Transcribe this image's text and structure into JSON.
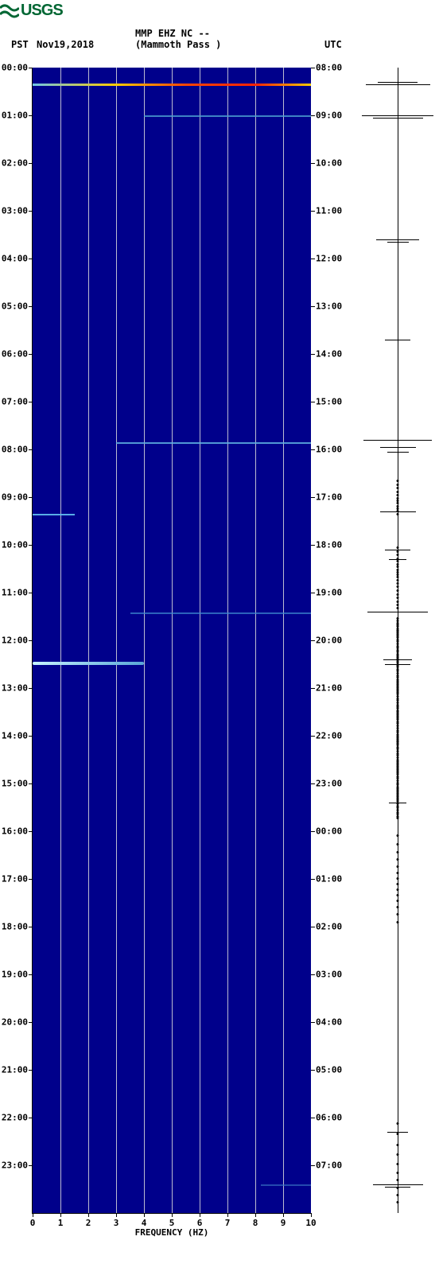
{
  "logo_text": "USGS",
  "header": {
    "station_line1": "MMP EHZ NC --",
    "station_line2": "(Mammoth Pass )",
    "left_tz": "PST",
    "date": "Nov19,2018",
    "right_tz": "UTC"
  },
  "spectrogram": {
    "type": "spectrogram",
    "background_color": "#00008b",
    "grid_color": "#dcdcdc",
    "x_axis": {
      "title": "FREQUENCY (HZ)",
      "min": 0,
      "max": 10,
      "tick_step": 1,
      "labels": [
        "0",
        "1",
        "2",
        "3",
        "4",
        "5",
        "6",
        "7",
        "8",
        "9",
        "10"
      ]
    },
    "left_time_labels": [
      "00:00",
      "01:00",
      "02:00",
      "03:00",
      "04:00",
      "05:00",
      "06:00",
      "07:00",
      "08:00",
      "09:00",
      "10:00",
      "11:00",
      "12:00",
      "13:00",
      "14:00",
      "15:00",
      "16:00",
      "17:00",
      "18:00",
      "19:00",
      "20:00",
      "21:00",
      "22:00",
      "23:00"
    ],
    "right_time_labels": [
      "08:00",
      "09:00",
      "10:00",
      "11:00",
      "12:00",
      "13:00",
      "14:00",
      "15:00",
      "16:00",
      "17:00",
      "18:00",
      "19:00",
      "20:00",
      "21:00",
      "22:00",
      "23:00",
      "00:00",
      "01:00",
      "02:00",
      "03:00",
      "04:00",
      "05:00",
      "06:00",
      "07:00"
    ],
    "hours": 24,
    "features": [
      {
        "hour": 0.33,
        "css": "height:3px;background:linear-gradient(90deg,#6ec3e6 0%,#ffcc00 30%,#ff4500 55%,#ff2200 80%,#ffcc00 100%);"
      },
      {
        "hour": 1.0,
        "css": "height:2px;left:40%;right:0;background:#4da3d1;opacity:0.8;"
      },
      {
        "hour": 7.85,
        "css": "height:2px;left:30%;right:0;background:#5fb1e0;opacity:0.85;"
      },
      {
        "hour": 9.35,
        "css": "height:2px;left:0;width:15%;background:#62c0ef;opacity:0.9;"
      },
      {
        "hour": 11.42,
        "css": "height:2px;left:35%;right:0;background:#3f8bd0;opacity:0.7;"
      },
      {
        "hour": 12.45,
        "css": "height:4px;left:0;width:40%;background:linear-gradient(90deg,#c7f3ff,#58a6d8);border-radius:2px;"
      },
      {
        "hour": 23.4,
        "css": "height:2px;left:82%;right:0;background:#3c7cc6;opacity:0.6;"
      }
    ]
  },
  "seismogram": {
    "type": "amplitude-trace",
    "axis_color": "#000000",
    "events": [
      {
        "hour": 0.3,
        "width": 0.55
      },
      {
        "hour": 0.35,
        "width": 0.9
      },
      {
        "hour": 1.0,
        "width": 1.0
      },
      {
        "hour": 1.05,
        "width": 0.7
      },
      {
        "hour": 3.6,
        "width": 0.6
      },
      {
        "hour": 3.65,
        "width": 0.3
      },
      {
        "hour": 5.7,
        "width": 0.35
      },
      {
        "hour": 7.8,
        "width": 0.95
      },
      {
        "hour": 7.95,
        "width": 0.5
      },
      {
        "hour": 8.05,
        "width": 0.3
      },
      {
        "hour": 9.3,
        "width": 0.5
      },
      {
        "hour": 10.1,
        "width": 0.35
      },
      {
        "hour": 10.3,
        "width": 0.25
      },
      {
        "hour": 11.4,
        "width": 0.85
      },
      {
        "hour": 12.4,
        "width": 0.4
      },
      {
        "hour": 12.5,
        "width": 0.35
      },
      {
        "hour": 15.4,
        "width": 0.25
      },
      {
        "hour": 22.3,
        "width": 0.28
      },
      {
        "hour": 23.4,
        "width": 0.7
      },
      {
        "hour": 23.45,
        "width": 0.35
      }
    ],
    "dot_ranges": [
      {
        "start": 8.6,
        "end": 9.4,
        "density": 12
      },
      {
        "start": 10.0,
        "end": 11.3,
        "density": 20
      },
      {
        "start": 11.5,
        "end": 15.7,
        "density": 110
      },
      {
        "start": 16.0,
        "end": 18.0,
        "density": 14
      },
      {
        "start": 22.0,
        "end": 23.9,
        "density": 10
      }
    ]
  }
}
